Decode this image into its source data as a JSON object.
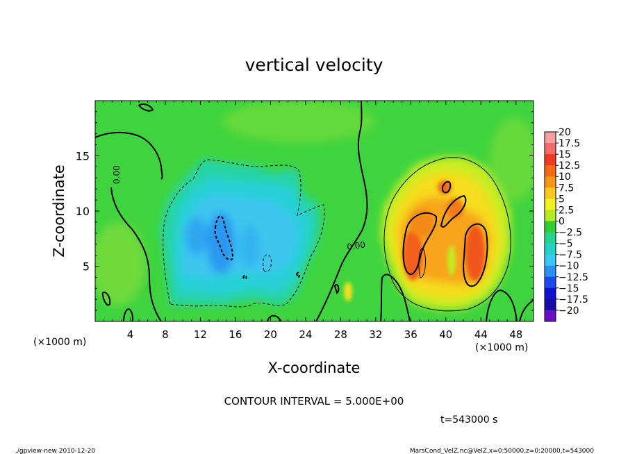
{
  "chart_data": {
    "type": "heatmap",
    "title": "vertical velocity",
    "xlabel": "X-coordinate",
    "ylabel": "Z-coordinate",
    "x_unit": "(×1000 m)",
    "y_unit": "(×1000 m)",
    "xlim": [
      0,
      50
    ],
    "ylim": [
      0,
      20
    ],
    "x_ticks": [
      4,
      8,
      12,
      16,
      20,
      24,
      28,
      32,
      36,
      40,
      44,
      48
    ],
    "y_ticks": [
      5,
      10,
      15
    ],
    "contour_interval_text": "CONTOUR INTERVAL = 5.000E+00",
    "contour_label": "0.00",
    "time_text": "t=543000 s",
    "footer_left": "./gpview-new  2010-12-20",
    "footer_right": "MarsCond_VelZ.nc@VelZ,x=0:50000,z=0:20000,t=543000",
    "colorbar": {
      "labels": [
        "20",
        "17.5",
        "15",
        "12.5",
        "10",
        "7.5",
        "5",
        "2.5",
        "0",
        "−2.5",
        "−5",
        "−7.5",
        "−10",
        "−12.5",
        "−15",
        "−17.5",
        "−20"
      ],
      "colors": [
        "#f4a0a0",
        "#f26b6b",
        "#ee3a22",
        "#f26a14",
        "#f89418",
        "#f8c820",
        "#f0f022",
        "#b4ec24",
        "#33cc33",
        "#26d38a",
        "#22d2c8",
        "#38c8f4",
        "#2a90f4",
        "#1a4af0",
        "#1010d0",
        "#1a0aa8",
        "#6a10c4"
      ],
      "edges": [
        20,
        17.5,
        15,
        12.5,
        10,
        7.5,
        5,
        2.5,
        0,
        -2.5,
        -5,
        -7.5,
        -10,
        -12.5,
        -15,
        -17.5,
        -20
      ]
    },
    "features": [
      {
        "kind": "updraft",
        "x": 40,
        "z": 7,
        "peak": 12.5
      },
      {
        "kind": "updraft",
        "x": 43,
        "z": 6.5,
        "peak": 10
      },
      {
        "kind": "updraft",
        "x": 36,
        "z": 6,
        "peak": 12
      },
      {
        "kind": "updraft",
        "x": 39.5,
        "z": 11,
        "peak": 8
      },
      {
        "kind": "downdraft",
        "x": 14,
        "z": 7.5,
        "peak": -8
      },
      {
        "kind": "downdraft",
        "x": 17,
        "z": 6,
        "peak": -6
      },
      {
        "kind": "downdraft",
        "x": 21,
        "z": 7,
        "peak": -5
      }
    ]
  },
  "colors": {
    "background_field": "#33cc33",
    "axis": "#000000"
  }
}
